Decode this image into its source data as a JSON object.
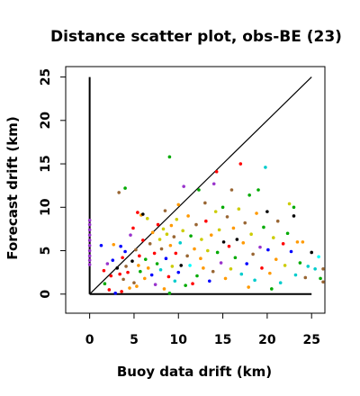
{
  "chart_data": {
    "type": "scatter",
    "title": "Distance scatter plot, obs-BE (23)",
    "xlabel": "Buoy data drift (km)",
    "ylabel": "Forecast drift (km)",
    "xlim": [
      -2.7,
      26.5
    ],
    "ylim": [
      -2.2,
      26.2
    ],
    "xticks": [
      0,
      5,
      10,
      15,
      20,
      25
    ],
    "yticks": [
      0,
      5,
      10,
      15,
      20,
      25
    ],
    "reference_lines": [
      {
        "kind": "diagonal",
        "from": [
          0,
          0
        ],
        "to": [
          25,
          25
        ]
      },
      {
        "kind": "y-axis-segment",
        "from": [
          0,
          0
        ],
        "to": [
          0,
          25
        ]
      },
      {
        "kind": "x-axis-segment",
        "from": [
          0,
          0
        ],
        "to": [
          25,
          0
        ]
      }
    ],
    "points": [
      {
        "x": 0.0,
        "y": 8.5,
        "color": "#9933cc"
      },
      {
        "x": 0.0,
        "y": 8.0,
        "color": "#9933cc"
      },
      {
        "x": 0.0,
        "y": 7.4,
        "color": "#9933cc"
      },
      {
        "x": 0.0,
        "y": 6.8,
        "color": "#9933cc"
      },
      {
        "x": 0.0,
        "y": 6.2,
        "color": "#9933cc"
      },
      {
        "x": 0.0,
        "y": 5.6,
        "color": "#9933cc"
      },
      {
        "x": 0.0,
        "y": 5.0,
        "color": "#9933cc"
      },
      {
        "x": 0.0,
        "y": 4.4,
        "color": "#9933cc"
      },
      {
        "x": 0.0,
        "y": 3.9,
        "color": "#9933cc"
      },
      {
        "x": 0.0,
        "y": 3.4,
        "color": "#9933cc"
      },
      {
        "x": 1.3,
        "y": 5.6,
        "color": "#0000ff"
      },
      {
        "x": 1.6,
        "y": 2.7,
        "color": "#ff0000"
      },
      {
        "x": 1.7,
        "y": 1.2,
        "color": "#00aa00"
      },
      {
        "x": 2.0,
        "y": 3.5,
        "color": "#9933cc"
      },
      {
        "x": 2.2,
        "y": 0.5,
        "color": "#ff0000"
      },
      {
        "x": 2.4,
        "y": 2.1,
        "color": "#ff0000"
      },
      {
        "x": 2.6,
        "y": 3.9,
        "color": "#0000ff"
      },
      {
        "x": 2.7,
        "y": 5.7,
        "color": "#ff9900"
      },
      {
        "x": 2.9,
        "y": 0.1,
        "color": "#0000ff"
      },
      {
        "x": 3.1,
        "y": 3.0,
        "color": "#000000"
      },
      {
        "x": 3.3,
        "y": 11.7,
        "color": "#996633"
      },
      {
        "x": 3.4,
        "y": 2.3,
        "color": "#ff0000"
      },
      {
        "x": 3.5,
        "y": 5.5,
        "color": "#0000ff"
      },
      {
        "x": 3.6,
        "y": 0.3,
        "color": "#ff0000"
      },
      {
        "x": 3.7,
        "y": 4.2,
        "color": "#ff0000"
      },
      {
        "x": 3.8,
        "y": 1.7,
        "color": "#996633"
      },
      {
        "x": 4.0,
        "y": 12.2,
        "color": "#00aa00"
      },
      {
        "x": 4.0,
        "y": 4.9,
        "color": "#0000ff"
      },
      {
        "x": 4.1,
        "y": 3.2,
        "color": "#996633"
      },
      {
        "x": 4.3,
        "y": 2.5,
        "color": "#ff0000"
      },
      {
        "x": 4.5,
        "y": 0.7,
        "color": "#ff9900"
      },
      {
        "x": 4.6,
        "y": 6.8,
        "color": "#9933cc"
      },
      {
        "x": 4.8,
        "y": 3.8,
        "color": "#000000"
      },
      {
        "x": 4.9,
        "y": 7.6,
        "color": "#ff0000"
      },
      {
        "x": 5.0,
        "y": 1.3,
        "color": "#996633"
      },
      {
        "x": 5.2,
        "y": 5.1,
        "color": "#996633"
      },
      {
        "x": 5.3,
        "y": 0.9,
        "color": "#ff9900"
      },
      {
        "x": 5.4,
        "y": 9.4,
        "color": "#ff0000"
      },
      {
        "x": 5.5,
        "y": 3.3,
        "color": "#ff9900"
      },
      {
        "x": 5.6,
        "y": 4.4,
        "color": "#ff0000"
      },
      {
        "x": 5.7,
        "y": 2.6,
        "color": "#00aa00"
      },
      {
        "x": 5.8,
        "y": 9.1,
        "color": "#ff9900"
      },
      {
        "x": 6.0,
        "y": 6.2,
        "color": "#ff0000"
      },
      {
        "x": 6.0,
        "y": 9.2,
        "color": "#000000"
      },
      {
        "x": 6.2,
        "y": 1.8,
        "color": "#ff9900"
      },
      {
        "x": 6.3,
        "y": 4.0,
        "color": "#00aa00"
      },
      {
        "x": 6.5,
        "y": 8.7,
        "color": "#cccc00"
      },
      {
        "x": 6.6,
        "y": 3.0,
        "color": "#ff9900"
      },
      {
        "x": 6.8,
        "y": 5.8,
        "color": "#996633"
      },
      {
        "x": 7.0,
        "y": 2.2,
        "color": "#0000ff"
      },
      {
        "x": 7.1,
        "y": 7.1,
        "color": "#ff9900"
      },
      {
        "x": 7.3,
        "y": 4.7,
        "color": "#ff0000"
      },
      {
        "x": 7.4,
        "y": 1.1,
        "color": "#9933cc"
      },
      {
        "x": 7.6,
        "y": 3.5,
        "color": "#00aa00"
      },
      {
        "x": 7.7,
        "y": 8.0,
        "color": "#ff0000"
      },
      {
        "x": 7.9,
        "y": 6.3,
        "color": "#cccc00"
      },
      {
        "x": 8.0,
        "y": 2.8,
        "color": "#00cccc"
      },
      {
        "x": 8.1,
        "y": 5.2,
        "color": "#996633"
      },
      {
        "x": 8.3,
        "y": 7.5,
        "color": "#cccc00"
      },
      {
        "x": 8.4,
        "y": 0.6,
        "color": "#ff9900"
      },
      {
        "x": 8.5,
        "y": 9.6,
        "color": "#996633"
      },
      {
        "x": 8.6,
        "y": 4.1,
        "color": "#0000ff"
      },
      {
        "x": 8.7,
        "y": 6.9,
        "color": "#cccc00"
      },
      {
        "x": 8.9,
        "y": 2.0,
        "color": "#ff0000"
      },
      {
        "x": 9.0,
        "y": 15.8,
        "color": "#00aa00"
      },
      {
        "x": 9.0,
        "y": 0.1,
        "color": "#00aa00"
      },
      {
        "x": 9.1,
        "y": 5.6,
        "color": "#ff9900"
      },
      {
        "x": 9.2,
        "y": 7.9,
        "color": "#ff9900"
      },
      {
        "x": 9.3,
        "y": 3.2,
        "color": "#cccc00"
      },
      {
        "x": 9.5,
        "y": 6.6,
        "color": "#996633"
      },
      {
        "x": 9.6,
        "y": 1.5,
        "color": "#00cccc"
      },
      {
        "x": 9.7,
        "y": 4.7,
        "color": "#ff0000"
      },
      {
        "x": 9.8,
        "y": 8.6,
        "color": "#cccc00"
      },
      {
        "x": 10.0,
        "y": 2.5,
        "color": "#0000ff"
      },
      {
        "x": 10.0,
        "y": 10.3,
        "color": "#ff9900"
      },
      {
        "x": 10.2,
        "y": 5.9,
        "color": "#00cccc"
      },
      {
        "x": 10.3,
        "y": 3.3,
        "color": "#000000"
      },
      {
        "x": 10.5,
        "y": 7.3,
        "color": "#cccc00"
      },
      {
        "x": 10.6,
        "y": 12.4,
        "color": "#9933cc"
      },
      {
        "x": 10.8,
        "y": 1.0,
        "color": "#00aa00"
      },
      {
        "x": 11.0,
        "y": 4.4,
        "color": "#996633"
      },
      {
        "x": 11.1,
        "y": 9.0,
        "color": "#ff9900"
      },
      {
        "x": 11.3,
        "y": 3.3,
        "color": "#00ffff"
      },
      {
        "x": 11.4,
        "y": 6.7,
        "color": "#00aa00"
      },
      {
        "x": 11.6,
        "y": 1.2,
        "color": "#ff0000"
      },
      {
        "x": 11.8,
        "y": 5.2,
        "color": "#ff9900"
      },
      {
        "x": 12.0,
        "y": 8.0,
        "color": "#996633"
      },
      {
        "x": 12.1,
        "y": 2.1,
        "color": "#00aa00"
      },
      {
        "x": 12.3,
        "y": 12.0,
        "color": "#00aa00"
      },
      {
        "x": 12.5,
        "y": 4.1,
        "color": "#ff9900"
      },
      {
        "x": 12.6,
        "y": 6.3,
        "color": "#cccc00"
      },
      {
        "x": 12.8,
        "y": 3.0,
        "color": "#ff9900"
      },
      {
        "x": 13.0,
        "y": 10.5,
        "color": "#996633"
      },
      {
        "x": 13.1,
        "y": 8.4,
        "color": "#ff0000"
      },
      {
        "x": 13.3,
        "y": 5.0,
        "color": "#cccc00"
      },
      {
        "x": 13.5,
        "y": 1.5,
        "color": "#0000ff"
      },
      {
        "x": 13.7,
        "y": 6.8,
        "color": "#ff9900"
      },
      {
        "x": 13.9,
        "y": 2.6,
        "color": "#996633"
      },
      {
        "x": 14.0,
        "y": 12.7,
        "color": "#9933cc"
      },
      {
        "x": 14.2,
        "y": 9.5,
        "color": "#cccc00"
      },
      {
        "x": 14.3,
        "y": 14.1,
        "color": "#ff0000"
      },
      {
        "x": 14.4,
        "y": 4.8,
        "color": "#00aa00"
      },
      {
        "x": 14.6,
        "y": 7.4,
        "color": "#cccc00"
      },
      {
        "x": 14.8,
        "y": 3.6,
        "color": "#9933cc"
      },
      {
        "x": 15.0,
        "y": 10.0,
        "color": "#00aa00"
      },
      {
        "x": 15.1,
        "y": 6.0,
        "color": "#000000"
      },
      {
        "x": 15.3,
        "y": 1.8,
        "color": "#ff9900"
      },
      {
        "x": 15.5,
        "y": 8.9,
        "color": "#996633"
      },
      {
        "x": 15.7,
        "y": 5.5,
        "color": "#ff0000"
      },
      {
        "x": 15.9,
        "y": 2.9,
        "color": "#cccc00"
      },
      {
        "x": 16.0,
        "y": 12.0,
        "color": "#996633"
      },
      {
        "x": 16.2,
        "y": 7.6,
        "color": "#ff9900"
      },
      {
        "x": 16.4,
        "y": 4.2,
        "color": "#00aa00"
      },
      {
        "x": 16.6,
        "y": 6.3,
        "color": "#000000"
      },
      {
        "x": 16.8,
        "y": 9.8,
        "color": "#cccc00"
      },
      {
        "x": 17.0,
        "y": 15.0,
        "color": "#ff0000"
      },
      {
        "x": 17.1,
        "y": 2.3,
        "color": "#00cccc"
      },
      {
        "x": 17.3,
        "y": 5.9,
        "color": "#ff9900"
      },
      {
        "x": 17.5,
        "y": 8.2,
        "color": "#996633"
      },
      {
        "x": 17.7,
        "y": 3.5,
        "color": "#0000ff"
      },
      {
        "x": 17.9,
        "y": 0.8,
        "color": "#ff9900"
      },
      {
        "x": 18.0,
        "y": 11.4,
        "color": "#00aa00"
      },
      {
        "x": 18.2,
        "y": 6.9,
        "color": "#cccc00"
      },
      {
        "x": 18.4,
        "y": 4.6,
        "color": "#996633"
      },
      {
        "x": 18.6,
        "y": 1.6,
        "color": "#00cccc"
      },
      {
        "x": 18.8,
        "y": 9.3,
        "color": "#ff9900"
      },
      {
        "x": 19.0,
        "y": 12.0,
        "color": "#00aa00"
      },
      {
        "x": 19.2,
        "y": 5.4,
        "color": "#9933cc"
      },
      {
        "x": 19.4,
        "y": 3.0,
        "color": "#ff0000"
      },
      {
        "x": 19.6,
        "y": 7.7,
        "color": "#00aa00"
      },
      {
        "x": 19.8,
        "y": 14.6,
        "color": "#00cccc"
      },
      {
        "x": 20.0,
        "y": 9.5,
        "color": "#000000"
      },
      {
        "x": 20.1,
        "y": 5.1,
        "color": "#0000ff"
      },
      {
        "x": 20.3,
        "y": 2.4,
        "color": "#ff9900"
      },
      {
        "x": 20.5,
        "y": 0.6,
        "color": "#00aa00"
      },
      {
        "x": 20.7,
        "y": 6.5,
        "color": "#cccc00"
      },
      {
        "x": 21.0,
        "y": 4.0,
        "color": "#ff9900"
      },
      {
        "x": 21.2,
        "y": 8.4,
        "color": "#996633"
      },
      {
        "x": 21.5,
        "y": 1.3,
        "color": "#00cccc"
      },
      {
        "x": 21.8,
        "y": 5.8,
        "color": "#ff0000"
      },
      {
        "x": 22.0,
        "y": 3.3,
        "color": "#cccc00"
      },
      {
        "x": 22.3,
        "y": 7.0,
        "color": "#00aa00"
      },
      {
        "x": 22.5,
        "y": 10.4,
        "color": "#cccc00"
      },
      {
        "x": 22.7,
        "y": 4.9,
        "color": "#0000ff"
      },
      {
        "x": 23.0,
        "y": 9.0,
        "color": "#000000"
      },
      {
        "x": 23.0,
        "y": 10.0,
        "color": "#00aa00"
      },
      {
        "x": 23.2,
        "y": 2.2,
        "color": "#00cccc"
      },
      {
        "x": 23.4,
        "y": 6.0,
        "color": "#ff9900"
      },
      {
        "x": 23.7,
        "y": 3.6,
        "color": "#00aa00"
      },
      {
        "x": 24.0,
        "y": 6.0,
        "color": "#ff9900"
      },
      {
        "x": 24.3,
        "y": 1.9,
        "color": "#996633"
      },
      {
        "x": 24.6,
        "y": 3.2,
        "color": "#00cccc"
      },
      {
        "x": 25.0,
        "y": 4.8,
        "color": "#000000"
      },
      {
        "x": 25.4,
        "y": 2.9,
        "color": "#00cccc"
      },
      {
        "x": 25.8,
        "y": 4.3,
        "color": "#00ffff"
      },
      {
        "x": 26.0,
        "y": 1.8,
        "color": "#00aa00"
      },
      {
        "x": 26.3,
        "y": 2.9,
        "color": "#996633"
      },
      {
        "x": 26.3,
        "y": 1.4,
        "color": "#996633"
      }
    ]
  }
}
